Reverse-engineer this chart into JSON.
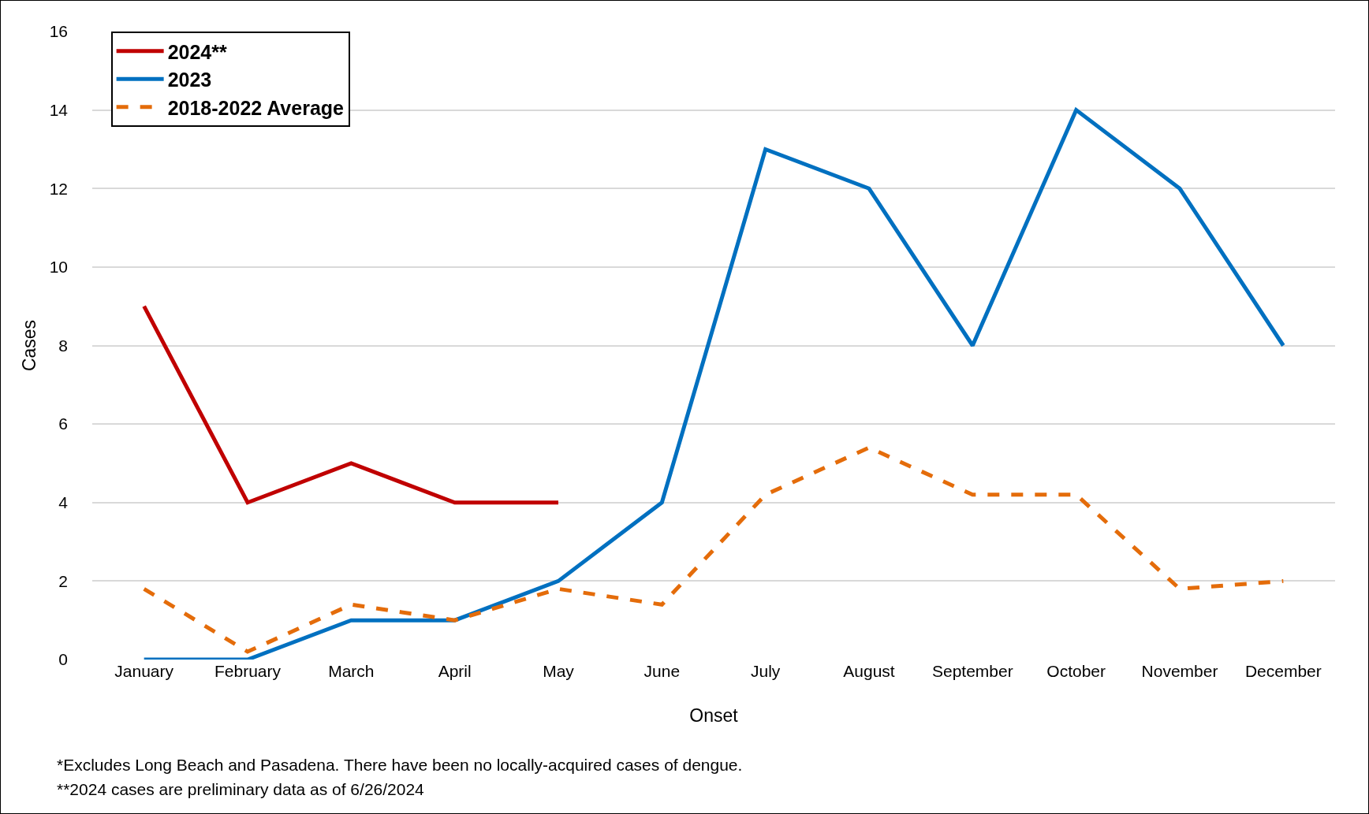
{
  "chart_data": {
    "type": "line",
    "xlabel": "Onset",
    "ylabel": "Cases",
    "categories": [
      "January",
      "February",
      "March",
      "April",
      "May",
      "June",
      "July",
      "August",
      "September",
      "October",
      "November",
      "December"
    ],
    "series": [
      {
        "name": "2024**",
        "color": "#c00000",
        "line_style": "solid",
        "values": [
          9,
          4,
          5,
          4,
          4,
          null,
          null,
          null,
          null,
          null,
          null,
          null
        ]
      },
      {
        "name": "2023",
        "color": "#0070c0",
        "line_style": "solid",
        "values": [
          0,
          0,
          1,
          1,
          2,
          4,
          13,
          12,
          8,
          14,
          12,
          8
        ]
      },
      {
        "name": "2018-2022 Average",
        "color": "#e46c0a",
        "line_style": "dashed",
        "values": [
          1.8,
          0.2,
          1.4,
          1.0,
          1.8,
          1.4,
          4.2,
          5.4,
          4.2,
          4.2,
          1.8,
          2.0
        ]
      }
    ],
    "ylim": [
      0,
      16
    ],
    "yticks": [
      0,
      2,
      4,
      6,
      8,
      10,
      12,
      14,
      16
    ],
    "grid": "y",
    "legend": "top left",
    "marker": "none",
    "annotations": [
      "*Excludes Long Beach and Pasadena. There have been no locally-acquired cases of dengue.",
      "**2024 cases are preliminary data as of 6/26/2024"
    ]
  }
}
